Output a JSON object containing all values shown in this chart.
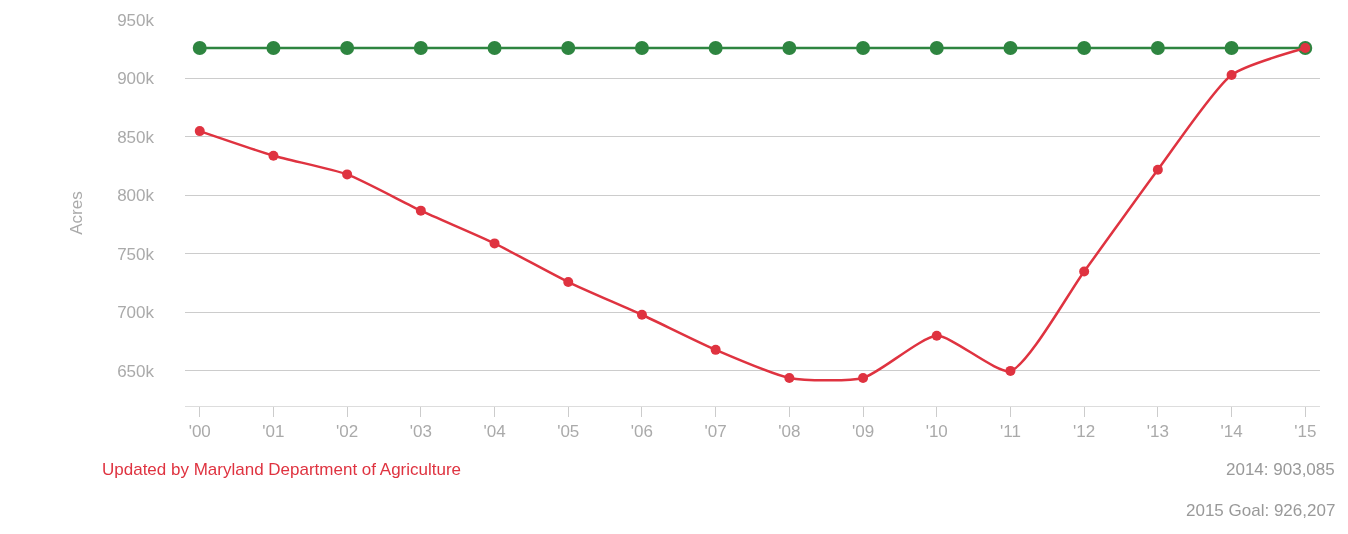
{
  "chart_data": {
    "type": "line",
    "ylabel": "Acres",
    "categories": [
      "'00",
      "'01",
      "'02",
      "'03",
      "'04",
      "'05",
      "'06",
      "'07",
      "'08",
      "'09",
      "'10",
      "'11",
      "'12",
      "'13",
      "'14",
      "'15"
    ],
    "series": [
      {
        "color": "#df3340",
        "values": [
          855000,
          834000,
          818000,
          787000,
          759000,
          726000,
          698000,
          668000,
          644000,
          644000,
          680000,
          650000,
          735000,
          822000,
          903000,
          926000
        ]
      },
      {
        "color": "#2e8540",
        "values": [
          926000,
          926000,
          926000,
          926000,
          926000,
          926000,
          926000,
          926000,
          926000,
          926000,
          926000,
          926000,
          926000,
          926000,
          926000,
          926000
        ]
      }
    ],
    "ylim": [
      620000,
      950000
    ],
    "yticks": [
      {
        "value": 650000,
        "label": "650k"
      },
      {
        "value": 700000,
        "label": "700k"
      },
      {
        "value": 750000,
        "label": "750k"
      },
      {
        "value": 800000,
        "label": "800k"
      },
      {
        "value": 850000,
        "label": "850k"
      },
      {
        "value": 900000,
        "label": "900k"
      },
      {
        "value": 950000,
        "label": "950k"
      }
    ],
    "grid": "y",
    "marker": "circle",
    "line_style": "solid",
    "annotations": [
      "Updated by Maryland Department of Agriculture",
      "2014: 903,085",
      "2015 Goal: 926,207"
    ]
  }
}
